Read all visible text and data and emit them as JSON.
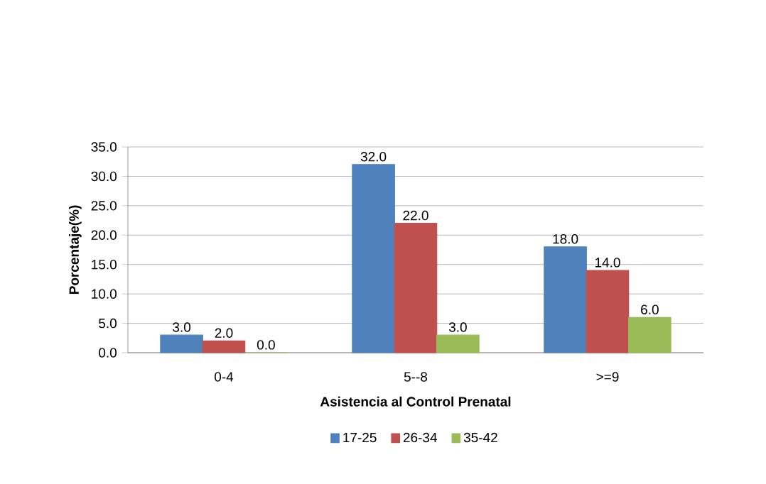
{
  "chart_data": {
    "type": "bar",
    "xlabel": "Asistencia al Control Prenatal",
    "ylabel": "Porcentaje(%)",
    "categories": [
      "0-4",
      "5--8",
      ">=9"
    ],
    "series": [
      {
        "name": "17-25",
        "color": "#4f81bd",
        "values": [
          3,
          32,
          18
        ],
        "value_labels": [
          "3.0",
          "32.0",
          "18.0"
        ]
      },
      {
        "name": "26-34",
        "color": "#c0504d",
        "values": [
          2,
          22,
          14
        ],
        "value_labels": [
          "2.0",
          "22.0",
          "14.0"
        ]
      },
      {
        "name": "35-42",
        "color": "#9bbb59",
        "values": [
          0,
          3,
          6
        ],
        "value_labels": [
          "0.0",
          "3.0",
          "6.0"
        ]
      }
    ],
    "ylim": [
      0,
      35
    ],
    "yticks": [
      {
        "value": 0,
        "label": "0.0"
      },
      {
        "value": 5,
        "label": "5.0"
      },
      {
        "value": 10,
        "label": "10.0"
      },
      {
        "value": 15,
        "label": "15.0"
      },
      {
        "value": 20,
        "label": "20.0"
      },
      {
        "value": 25,
        "label": "25.0"
      },
      {
        "value": 30,
        "label": "30.0"
      },
      {
        "value": 35,
        "label": "35.0"
      }
    ],
    "grid": "y",
    "legend": "bottom"
  }
}
